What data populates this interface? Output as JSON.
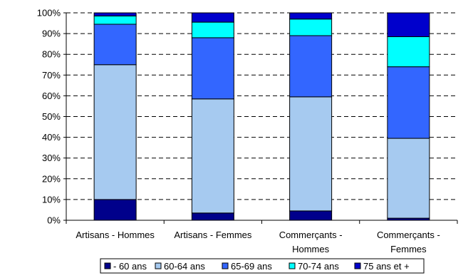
{
  "chart_data": {
    "type": "bar",
    "stacked": true,
    "percent": true,
    "categories": [
      [
        "Artisans - Hommes"
      ],
      [
        "Artisans - Femmes"
      ],
      [
        "Commerçants -",
        "Hommes"
      ],
      [
        "Commerçants -",
        "Femmes"
      ]
    ],
    "series": [
      {
        "name": "- 60 ans",
        "color": "#00008B",
        "values": [
          10,
          3.5,
          4.5,
          1.0
        ]
      },
      {
        "name": "60-64 ans",
        "color": "#A6CAF0",
        "values": [
          65,
          55.0,
          55.0,
          38.5
        ]
      },
      {
        "name": "65-69 ans",
        "color": "#3366FF",
        "values": [
          19.5,
          29.5,
          29.5,
          34.5
        ]
      },
      {
        "name": "70-74 ans",
        "color": "#00FFFF",
        "values": [
          4,
          7.5,
          8.0,
          14.5
        ]
      },
      {
        "name": "75 ans et +",
        "color": "#0000CC",
        "values": [
          1.5,
          4.5,
          3.0,
          11.5
        ]
      }
    ],
    "yticks": [
      "0%",
      "10%",
      "20%",
      "30%",
      "40%",
      "50%",
      "60%",
      "70%",
      "80%",
      "90%",
      "100%"
    ],
    "ylim": [
      0,
      100
    ],
    "grid": true,
    "legend": "bottom",
    "title": "",
    "xlabel": "",
    "ylabel": ""
  }
}
